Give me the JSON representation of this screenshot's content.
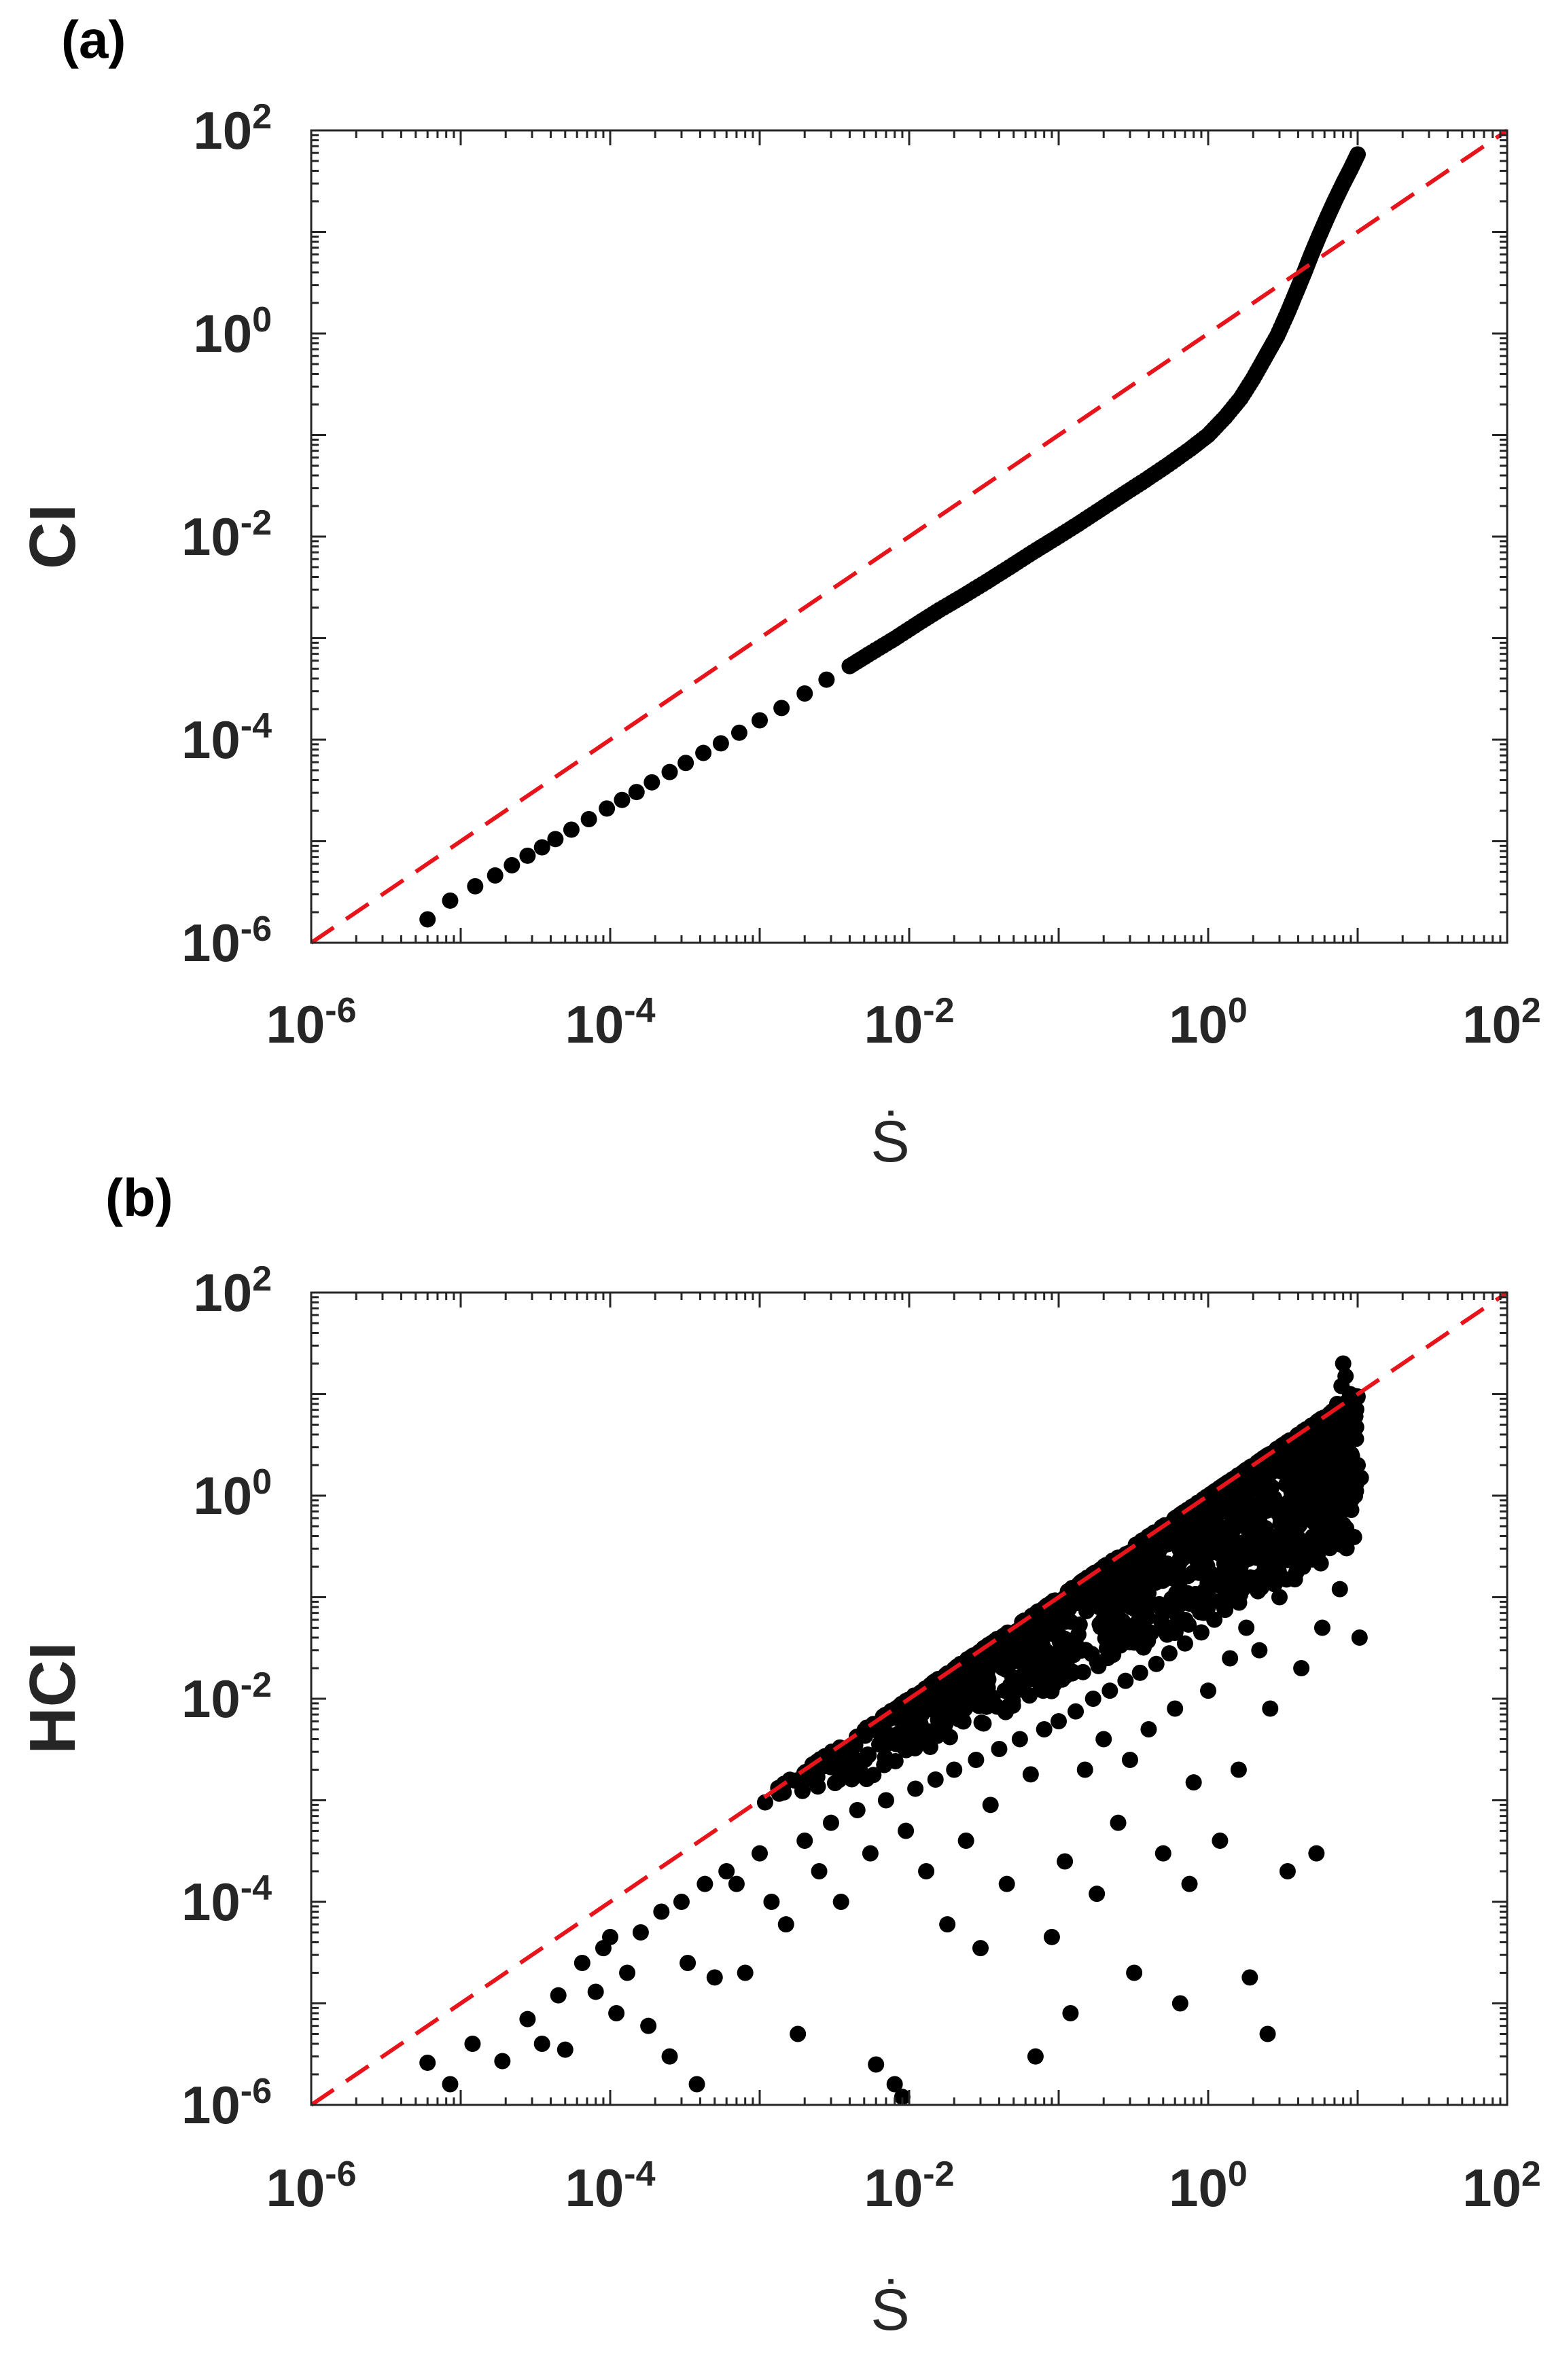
{
  "chart_data": [
    {
      "panel_label": "(a)",
      "type": "scatter",
      "xlabel": "Ṡ",
      "ylabel": "CI",
      "xscale": "log",
      "yscale": "log",
      "xlim": [
        1e-06,
        100
      ],
      "ylim": [
        1e-06,
        100
      ],
      "x_tick_labels": [
        {
          "base": "10",
          "exp": "-6"
        },
        {
          "base": "10",
          "exp": "-4"
        },
        {
          "base": "10",
          "exp": "-2"
        },
        {
          "base": "10",
          "exp": "0"
        },
        {
          "base": "10",
          "exp": "2"
        }
      ],
      "y_tick_labels": [
        {
          "base": "10",
          "exp": "-6"
        },
        {
          "base": "10",
          "exp": "-4"
        },
        {
          "base": "10",
          "exp": "-2"
        },
        {
          "base": "10",
          "exp": "0"
        },
        {
          "base": "10",
          "exp": "2"
        }
      ],
      "reference_line": {
        "style": "dashed",
        "color": "#e8141b",
        "relation": "y = x"
      },
      "marker_color": "#000000",
      "grid": false,
      "series": [
        {
          "points": [
            [
              6e-06,
              1.7e-06
            ],
            [
              8.5e-06,
              2.6e-06
            ],
            [
              1.25e-05,
              3.6e-06
            ],
            [
              1.7e-05,
              4.6e-06
            ],
            [
              2.2e-05,
              5.8e-06
            ],
            [
              2.8e-05,
              7.2e-06
            ],
            [
              3.5e-05,
              8.7e-06
            ],
            [
              4.3e-05,
              1.05e-05
            ],
            [
              5.5e-05,
              1.3e-05
            ],
            [
              7.2e-05,
              1.65e-05
            ],
            [
              9.5e-05,
              2.1e-05
            ],
            [
              0.00012,
              2.55e-05
            ],
            [
              0.00015,
              3.05e-05
            ],
            [
              0.00019,
              3.8e-05
            ],
            [
              0.00025,
              4.8e-05
            ],
            [
              0.00032,
              5.9e-05
            ],
            [
              0.00042,
              7.4e-05
            ],
            [
              0.00055,
              9.2e-05
            ],
            [
              0.00073,
              0.000117
            ],
            [
              0.001,
              0.000155
            ],
            [
              0.0014,
              0.000205
            ],
            [
              0.002,
              0.000285
            ],
            [
              0.0028,
              0.00039
            ],
            [
              0.004,
              0.00053
            ],
            [
              0.0056,
              0.00072
            ],
            [
              0.008,
              0.00099
            ],
            [
              0.0115,
              0.0014
            ],
            [
              0.016,
              0.0019
            ],
            [
              0.023,
              0.0026
            ],
            [
              0.033,
              0.0036
            ],
            [
              0.047,
              0.005
            ],
            [
              0.067,
              0.007
            ],
            [
              0.095,
              0.0096
            ],
            [
              0.135,
              0.0133
            ],
            [
              0.19,
              0.0185
            ],
            [
              0.27,
              0.026
            ],
            [
              0.38,
              0.036
            ],
            [
              0.54,
              0.051
            ],
            [
              0.76,
              0.073
            ],
            [
              1.0,
              0.1
            ],
            [
              1.3,
              0.15
            ],
            [
              1.65,
              0.23
            ],
            [
              2.0,
              0.36
            ],
            [
              2.4,
              0.58
            ],
            [
              2.9,
              0.95
            ],
            [
              3.4,
              1.6
            ],
            [
              3.9,
              2.6
            ],
            [
              4.4,
              4.0
            ],
            [
              4.9,
              6.0
            ],
            [
              5.5,
              9.0
            ],
            [
              6.2,
              13.5
            ],
            [
              7.0,
              20.0
            ],
            [
              8.0,
              30.0
            ],
            [
              9.0,
              42.0
            ],
            [
              10.0,
              58.0
            ]
          ]
        }
      ]
    },
    {
      "panel_label": "(b)",
      "type": "scatter",
      "xlabel": "Ṡ",
      "ylabel": "HCI",
      "xscale": "log",
      "yscale": "log",
      "xlim": [
        1e-06,
        100
      ],
      "ylim": [
        1e-06,
        100
      ],
      "x_tick_labels": [
        {
          "base": "10",
          "exp": "-6"
        },
        {
          "base": "10",
          "exp": "-4"
        },
        {
          "base": "10",
          "exp": "-2"
        },
        {
          "base": "10",
          "exp": "0"
        },
        {
          "base": "10",
          "exp": "2"
        }
      ],
      "y_tick_labels": [
        {
          "base": "10",
          "exp": "-6"
        },
        {
          "base": "10",
          "exp": "-4"
        },
        {
          "base": "10",
          "exp": "-2"
        },
        {
          "base": "10",
          "exp": "0"
        },
        {
          "base": "10",
          "exp": "2"
        }
      ],
      "reference_line": {
        "style": "dashed",
        "color": "#e8141b",
        "relation": "y = x"
      },
      "marker_color": "#000000",
      "grid": false,
      "series": [
        {
          "points": [
            [
              6e-06,
              2.6e-06
            ],
            [
              8.5e-06,
              1.6e-06
            ],
            [
              1.2e-05,
              4e-06
            ],
            [
              1.9e-05,
              2.7e-06
            ],
            [
              2.8e-05,
              7e-06
            ],
            [
              3.5e-05,
              4e-06
            ],
            [
              4.5e-05,
              1.2e-05
            ],
            [
              5e-05,
              3.5e-06
            ],
            [
              6.5e-05,
              2.5e-05
            ],
            [
              8e-05,
              1.3e-05
            ],
            [
              9e-05,
              3.5e-05
            ],
            [
              0.0001,
              4.5e-05
            ],
            [
              0.00011,
              8e-06
            ],
            [
              0.00013,
              2e-05
            ],
            [
              0.00016,
              5e-05
            ],
            [
              0.00018,
              6e-06
            ],
            [
              0.00022,
              8e-05
            ],
            [
              0.00025,
              3e-06
            ],
            [
              0.0003,
              0.0001
            ],
            [
              0.00033,
              2.5e-05
            ],
            [
              0.00038,
              1.6e-06
            ],
            [
              0.00043,
              0.00015
            ],
            [
              0.0005,
              1.8e-05
            ],
            [
              0.0006,
              0.0002
            ],
            [
              0.0007,
              0.00015
            ],
            [
              0.0008,
              2e-05
            ],
            [
              0.001,
              0.0003
            ],
            [
              0.0012,
              0.0001
            ],
            [
              0.0015,
              6e-05
            ],
            [
              0.0018,
              5e-06
            ],
            [
              0.002,
              0.0004
            ],
            [
              0.0025,
              0.0002
            ],
            [
              0.003,
              0.0006
            ],
            [
              0.0035,
              0.0001
            ],
            [
              0.0045,
              0.0008
            ],
            [
              0.0055,
              0.0003
            ],
            [
              0.006,
              2.5e-06
            ],
            [
              0.007,
              0.001
            ],
            [
              0.008,
              1.6e-06
            ],
            [
              0.009,
              1.2e-06
            ],
            [
              0.0095,
              0.0005
            ],
            [
              0.011,
              0.0013
            ],
            [
              0.013,
              0.0002
            ],
            [
              0.015,
              0.0016
            ],
            [
              0.018,
              6e-05
            ],
            [
              0.02,
              0.002
            ],
            [
              0.024,
              0.0004
            ],
            [
              0.028,
              0.0025
            ],
            [
              0.03,
              3.5e-05
            ],
            [
              0.035,
              0.0009
            ],
            [
              0.04,
              0.0032
            ],
            [
              0.045,
              0.00015
            ],
            [
              0.055,
              0.004
            ],
            [
              0.065,
              0.0018
            ],
            [
              0.07,
              3e-06
            ],
            [
              0.08,
              0.005
            ],
            [
              0.09,
              4.5e-05
            ],
            [
              0.1,
              0.006
            ],
            [
              0.11,
              0.00025
            ],
            [
              0.12,
              8e-06
            ],
            [
              0.13,
              0.0075
            ],
            [
              0.15,
              0.002
            ],
            [
              0.17,
              0.01
            ],
            [
              0.18,
              0.00012
            ],
            [
              0.2,
              0.004
            ],
            [
              0.22,
              0.012
            ],
            [
              0.25,
              0.0006
            ],
            [
              0.28,
              0.015
            ],
            [
              0.3,
              0.0025
            ],
            [
              0.32,
              2e-05
            ],
            [
              0.35,
              0.018
            ],
            [
              0.4,
              0.005
            ],
            [
              0.45,
              0.022
            ],
            [
              0.5,
              0.0003
            ],
            [
              0.55,
              0.028
            ],
            [
              0.6,
              0.008
            ],
            [
              0.65,
              1e-05
            ],
            [
              0.7,
              0.035
            ],
            [
              0.75,
              0.00015
            ],
            [
              0.8,
              0.0015
            ],
            [
              0.9,
              0.045
            ],
            [
              1.0,
              0.012
            ],
            [
              1.1,
              0.06
            ],
            [
              1.2,
              0.0004
            ],
            [
              1.3,
              0.075
            ],
            [
              1.4,
              0.025
            ],
            [
              1.5,
              0.1
            ],
            [
              1.6,
              0.002
            ],
            [
              1.7,
              0.12
            ],
            [
              1.8,
              0.05
            ],
            [
              1.9,
              1.8e-05
            ],
            [
              2.0,
              0.15
            ],
            [
              2.2,
              0.03
            ],
            [
              2.4,
              0.2
            ],
            [
              2.5,
              5e-06
            ],
            [
              2.6,
              0.008
            ],
            [
              2.8,
              0.25
            ],
            [
              3.0,
              0.1
            ],
            [
              3.2,
              0.32
            ],
            [
              3.4,
              0.0002
            ],
            [
              3.6,
              0.4
            ],
            [
              3.8,
              0.15
            ],
            [
              4.0,
              0.5
            ],
            [
              4.2,
              0.02
            ],
            [
              4.5,
              0.65
            ],
            [
              4.8,
              0.25
            ],
            [
              5.0,
              0.8
            ],
            [
              5.3,
              0.0003
            ],
            [
              5.5,
              1.0
            ],
            [
              5.8,
              0.05
            ],
            [
              6.0,
              1.5
            ],
            [
              6.3,
              0.4
            ],
            [
              6.6,
              2.5
            ],
            [
              7.0,
              5.0
            ],
            [
              7.3,
              8.0
            ],
            [
              7.6,
              0.12
            ],
            [
              7.8,
              12.0
            ],
            [
              8.0,
              20.0
            ],
            [
              8.3,
              15.0
            ],
            [
              8.6,
              3.0
            ],
            [
              8.9,
              10.0
            ],
            [
              9.3,
              6.0
            ],
            [
              9.6,
              1.0
            ],
            [
              10.0,
              2.0
            ],
            [
              10.3,
              0.04
            ],
            [
              10.5,
              1.5
            ]
          ],
          "dense_region": {
            "description_values": "dense cluster of points between lower bound and y = x",
            "x_min": 0.001,
            "x_max": 10.0,
            "y_max_equals_x": true,
            "y_lower_factor": 0.05,
            "count": 1400
          }
        }
      ]
    }
  ]
}
